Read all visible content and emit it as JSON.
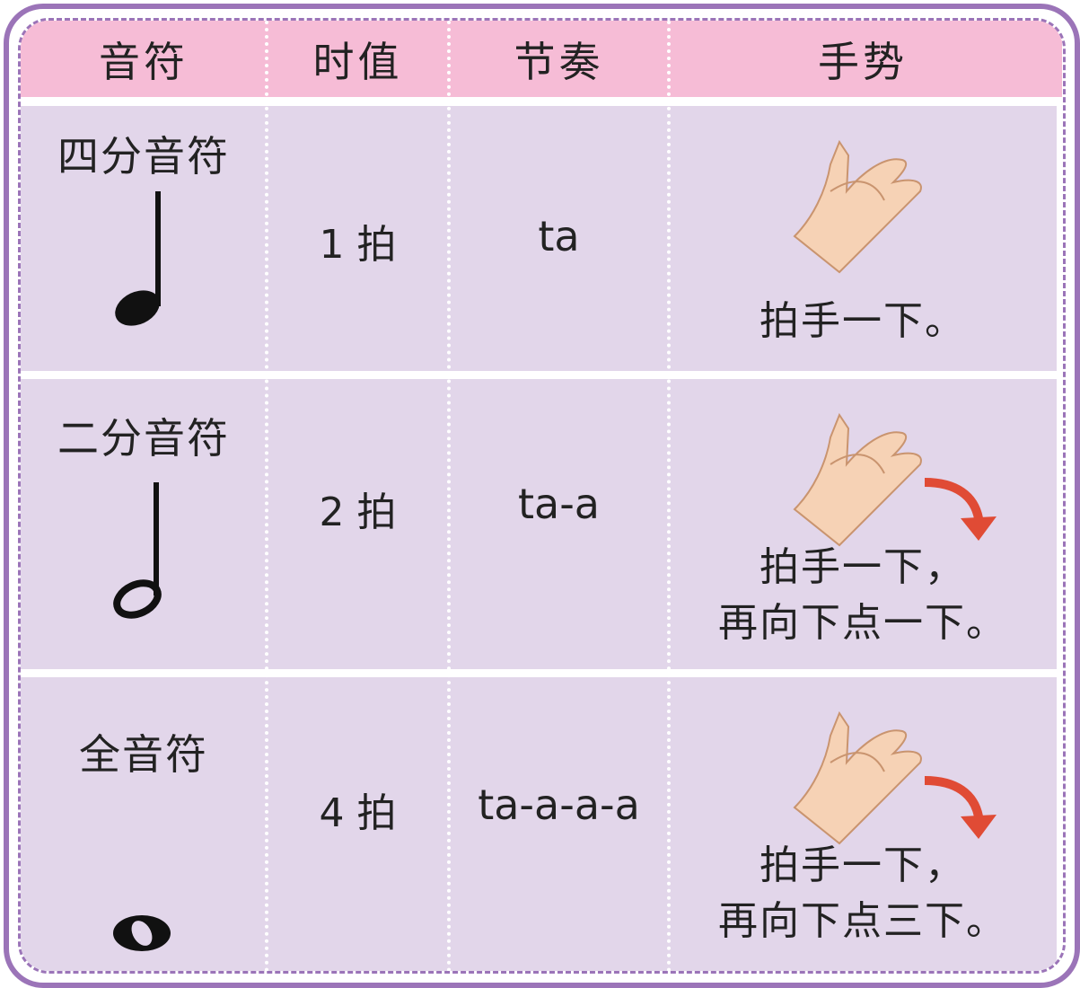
{
  "table": {
    "header": [
      "音符",
      "时值",
      "节奏",
      "手势"
    ],
    "rows": [
      {
        "note": "四分音符",
        "duration": "1 拍",
        "rhythm": "ta",
        "gesture": [
          "拍手一下。"
        ]
      },
      {
        "note": "二分音符",
        "duration": "2 拍",
        "rhythm": "ta-a",
        "gesture": [
          "拍手一下，",
          "再向下点一下。"
        ]
      },
      {
        "note": "全音符",
        "duration": "4 拍",
        "rhythm": "ta-a-a-a",
        "gesture": [
          "拍手一下，",
          "再向下点三下。"
        ]
      }
    ]
  }
}
